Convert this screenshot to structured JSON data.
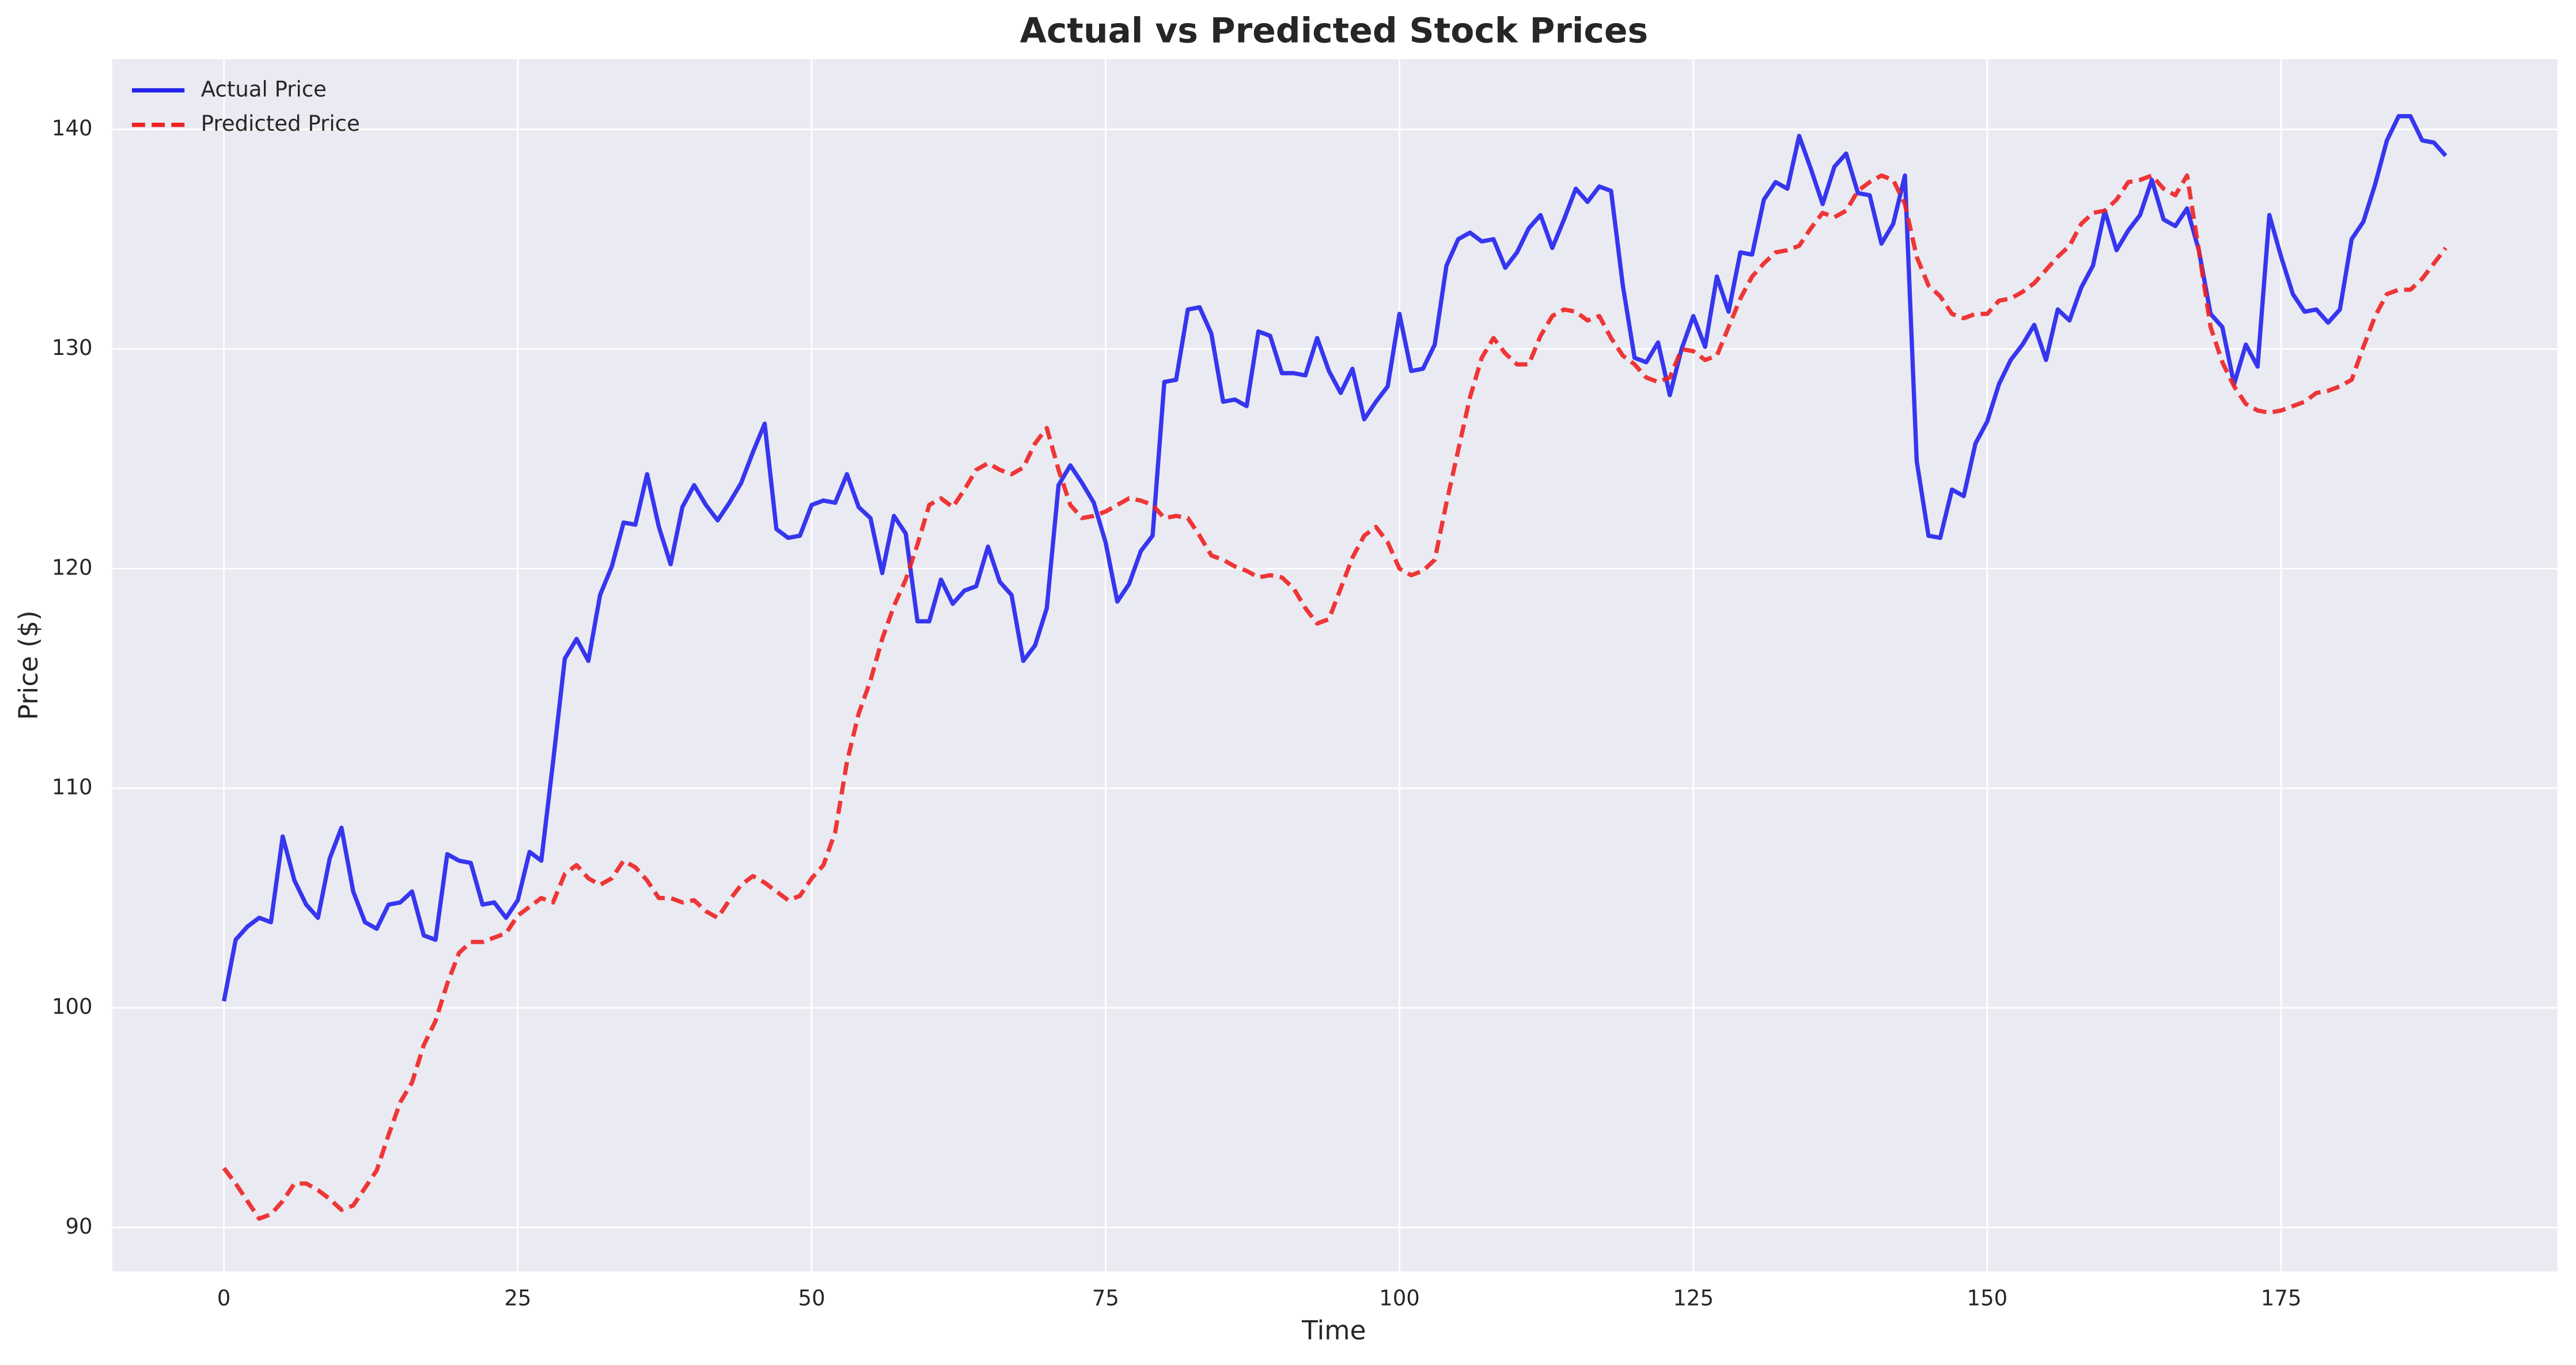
{
  "chart_data": {
    "type": "line",
    "title": "Actual vs Predicted Stock Prices",
    "x_label": "Time",
    "y_label": "Price ($)",
    "x": [
      0,
      1,
      2,
      3,
      4,
      5,
      6,
      7,
      8,
      9,
      10,
      11,
      12,
      13,
      14,
      15,
      16,
      17,
      18,
      19,
      20,
      21,
      22,
      23,
      24,
      25,
      26,
      27,
      28,
      29,
      30,
      31,
      32,
      33,
      34,
      35,
      36,
      37,
      38,
      39,
      40,
      41,
      42,
      43,
      44,
      45,
      46,
      47,
      48,
      49,
      50,
      51,
      52,
      53,
      54,
      55,
      56,
      57,
      58,
      59,
      60,
      61,
      62,
      63,
      64,
      65,
      66,
      67,
      68,
      69,
      70,
      71,
      72,
      73,
      74,
      75,
      76,
      77,
      78,
      79,
      80,
      81,
      82,
      83,
      84,
      85,
      86,
      87,
      88,
      89,
      90,
      91,
      92,
      93,
      94,
      95,
      96,
      97,
      98,
      99,
      100,
      101,
      102,
      103,
      104,
      105,
      106,
      107,
      108,
      109,
      110,
      111,
      112,
      113,
      114,
      115,
      116,
      117,
      118,
      119,
      120,
      121,
      122,
      123,
      124,
      125,
      126,
      127,
      128,
      129,
      130,
      131,
      132,
      133,
      134,
      135,
      136,
      137,
      138,
      139,
      140,
      141,
      142,
      143,
      144,
      145,
      146,
      147,
      148,
      149,
      150,
      151,
      152,
      153,
      154,
      155,
      156,
      157,
      158,
      159,
      160,
      161,
      162,
      163,
      164,
      165,
      166,
      167,
      168,
      169,
      170,
      171,
      172,
      173,
      174,
      175,
      176,
      177,
      178,
      179,
      180,
      181,
      182,
      183,
      184,
      185,
      186,
      187,
      188,
      189
    ],
    "series": [
      {
        "name": "Actual Price",
        "color": "#2222ee",
        "linestyle": "solid",
        "values": [
          100.3,
          103.1,
          103.7,
          104.1,
          103.9,
          107.8,
          105.8,
          104.7,
          104.1,
          106.8,
          108.2,
          105.3,
          103.9,
          103.6,
          104.7,
          104.8,
          105.3,
          103.3,
          103.1,
          107.0,
          106.7,
          106.6,
          104.7,
          104.8,
          104.1,
          104.9,
          107.1,
          106.7,
          111.2,
          115.9,
          116.8,
          115.8,
          118.8,
          120.1,
          122.1,
          122.0,
          124.3,
          121.9,
          120.2,
          122.8,
          123.8,
          122.9,
          122.2,
          123.0,
          123.9,
          125.3,
          126.6,
          121.8,
          121.4,
          121.5,
          122.9,
          123.1,
          123.0,
          124.3,
          122.8,
          122.3,
          119.8,
          122.4,
          121.6,
          117.6,
          117.6,
          119.5,
          118.4,
          119.0,
          119.2,
          121.0,
          119.4,
          118.8,
          115.8,
          116.5,
          118.2,
          123.8,
          124.7,
          123.9,
          123.0,
          121.2,
          118.5,
          119.3,
          120.8,
          121.5,
          128.5,
          128.6,
          131.8,
          131.9,
          130.7,
          127.6,
          127.7,
          127.4,
          130.8,
          130.6,
          128.9,
          128.9,
          128.8,
          130.5,
          129.0,
          128.0,
          129.1,
          126.8,
          127.6,
          128.3,
          131.6,
          129.0,
          129.1,
          130.2,
          133.8,
          135.0,
          135.3,
          134.9,
          135.0,
          133.7,
          134.4,
          135.5,
          136.1,
          134.6,
          135.9,
          137.3,
          136.7,
          137.4,
          137.2,
          132.9,
          129.6,
          129.4,
          130.3,
          127.9,
          130.0,
          131.5,
          130.1,
          133.3,
          131.7,
          134.4,
          134.3,
          136.8,
          137.6,
          137.3,
          139.7,
          138.2,
          136.6,
          138.3,
          138.9,
          137.1,
          137.0,
          134.8,
          135.7,
          137.9,
          124.9,
          121.5,
          121.4,
          123.6,
          123.3,
          125.7,
          126.7,
          128.4,
          129.5,
          130.2,
          131.1,
          129.5,
          131.8,
          131.3,
          132.8,
          133.8,
          136.3,
          134.5,
          135.4,
          136.1,
          137.7,
          135.9,
          135.6,
          136.4,
          134.5,
          131.6,
          131.0,
          128.4,
          130.2,
          129.2,
          136.1,
          134.2,
          132.5,
          131.7,
          131.8,
          131.2,
          131.8,
          135.0,
          135.8,
          137.5,
          139.5,
          140.6,
          140.6,
          139.5,
          139.4,
          138.8
        ]
      },
      {
        "name": "Predicted Price",
        "color": "#ee2222",
        "linestyle": "dashed",
        "values": [
          92.7,
          92.0,
          91.2,
          90.4,
          90.6,
          91.2,
          92.0,
          92.0,
          91.7,
          91.3,
          90.8,
          91.0,
          91.8,
          92.6,
          94.2,
          95.7,
          96.6,
          98.3,
          99.4,
          101.1,
          102.5,
          103.0,
          103.0,
          103.2,
          103.4,
          104.2,
          104.6,
          105.0,
          104.8,
          106.1,
          106.5,
          105.9,
          105.6,
          105.9,
          106.7,
          106.4,
          105.8,
          105.0,
          105.0,
          104.8,
          104.9,
          104.4,
          104.1,
          104.9,
          105.6,
          106.0,
          105.7,
          105.3,
          104.9,
          105.1,
          105.9,
          106.5,
          108.0,
          111.2,
          113.4,
          114.9,
          116.8,
          118.3,
          119.5,
          121.1,
          122.9,
          123.2,
          122.8,
          123.6,
          124.5,
          124.8,
          124.5,
          124.3,
          124.6,
          125.7,
          126.4,
          124.5,
          122.9,
          122.3,
          122.4,
          122.6,
          122.9,
          123.2,
          123.1,
          122.9,
          122.3,
          122.4,
          122.3,
          121.5,
          120.6,
          120.4,
          120.1,
          119.9,
          119.6,
          119.7,
          119.6,
          119.1,
          118.2,
          117.5,
          117.7,
          119.1,
          120.5,
          121.5,
          121.9,
          121.2,
          120.0,
          119.7,
          119.9,
          120.4,
          123.0,
          125.4,
          127.8,
          129.6,
          130.5,
          129.8,
          129.3,
          129.3,
          130.6,
          131.5,
          131.8,
          131.7,
          131.3,
          131.5,
          130.5,
          129.7,
          129.3,
          128.7,
          128.5,
          128.7,
          130.0,
          129.9,
          129.5,
          129.7,
          131.0,
          132.3,
          133.3,
          133.9,
          134.4,
          134.5,
          134.7,
          135.5,
          136.2,
          136.0,
          136.3,
          137.2,
          137.6,
          137.9,
          137.7,
          136.6,
          134.2,
          132.9,
          132.4,
          131.6,
          131.4,
          131.6,
          131.6,
          132.2,
          132.3,
          132.6,
          133.0,
          133.6,
          134.2,
          134.7,
          135.7,
          136.2,
          136.3,
          136.8,
          137.6,
          137.7,
          137.9,
          137.3,
          137.0,
          137.9,
          134.5,
          131.0,
          129.4,
          128.3,
          127.5,
          127.2,
          127.1,
          127.2,
          127.4,
          127.6,
          128.0,
          128.1,
          128.3,
          128.6,
          130.1,
          131.5,
          132.5,
          132.7,
          132.7,
          133.2,
          133.9,
          134.6
        ]
      }
    ],
    "xlim": [
      -9.5,
      198.5
    ],
    "ylim": [
      88.0,
      143.2
    ],
    "xticks": [
      0,
      25,
      50,
      75,
      100,
      125,
      150,
      175
    ],
    "yticks": [
      90,
      100,
      110,
      120,
      130,
      140
    ],
    "grid": true,
    "legend": "upper left"
  }
}
